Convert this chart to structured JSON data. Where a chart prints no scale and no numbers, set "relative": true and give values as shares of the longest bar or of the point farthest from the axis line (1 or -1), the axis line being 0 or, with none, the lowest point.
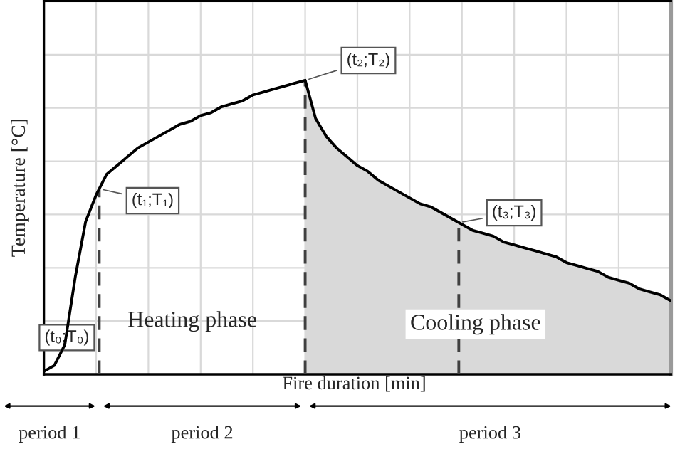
{
  "chart_data": {
    "type": "line",
    "relative": true,
    "ylabel": "Temperature [°C]",
    "xlabel": "Fire duration [min]",
    "grid": true,
    "categories": [
      null,
      null,
      null,
      null,
      null,
      null,
      null,
      null,
      null,
      null,
      null,
      null,
      null,
      null,
      null,
      null,
      null,
      null,
      null,
      null,
      null,
      null,
      null,
      null,
      null,
      null,
      null,
      null,
      null,
      null,
      null,
      null,
      null,
      null,
      null,
      null,
      null,
      null,
      null,
      null,
      null,
      null,
      null,
      null,
      null,
      null,
      null,
      null,
      null,
      null,
      null,
      null,
      null,
      null,
      null,
      null,
      null,
      null,
      null,
      null,
      null
    ],
    "series": [
      {
        "type": "area",
        "color": "#d9d9d9",
        "values": [
          null,
          null,
          null,
          null,
          null,
          null,
          null,
          null,
          null,
          null,
          null,
          null,
          null,
          null,
          null,
          null,
          null,
          null,
          null,
          null,
          null,
          null,
          null,
          null,
          null,
          1.0,
          0.87,
          0.81,
          0.77,
          0.74,
          0.71,
          0.69,
          0.66,
          0.64,
          0.62,
          0.6,
          0.58,
          0.57,
          0.55,
          0.53,
          0.51,
          0.49,
          0.48,
          0.47,
          0.45,
          0.44,
          0.43,
          0.42,
          0.41,
          0.4,
          0.38,
          0.37,
          0.36,
          0.35,
          0.33,
          0.32,
          0.31,
          0.29,
          0.28,
          0.27,
          0.25
        ]
      },
      {
        "type": "line",
        "color": "#000000",
        "values": [
          0.01,
          0.03,
          0.1,
          0.33,
          0.52,
          0.61,
          0.68,
          0.71,
          0.74,
          0.77,
          0.79,
          0.81,
          0.83,
          0.85,
          0.86,
          0.88,
          0.89,
          0.91,
          0.92,
          0.93,
          0.95,
          0.96,
          0.97,
          0.98,
          0.99,
          1.0,
          0.87,
          0.81,
          0.77,
          0.74,
          0.71,
          0.69,
          0.66,
          0.64,
          0.62,
          0.6,
          0.58,
          0.57,
          0.55,
          0.53,
          0.51,
          0.49,
          0.48,
          0.47,
          0.45,
          0.44,
          0.43,
          0.42,
          0.41,
          0.4,
          0.38,
          0.37,
          0.36,
          0.35,
          0.33,
          0.32,
          0.31,
          0.29,
          0.28,
          0.27,
          0.25
        ]
      }
    ],
    "annotations": [
      "(t₀;T₀)",
      "Heating phase",
      "Cooling phase",
      "period 1",
      "period 2",
      "period 3",
      "(t₁;T₁)",
      "(t₂;T₂)",
      "(t₃;T₃)"
    ]
  }
}
